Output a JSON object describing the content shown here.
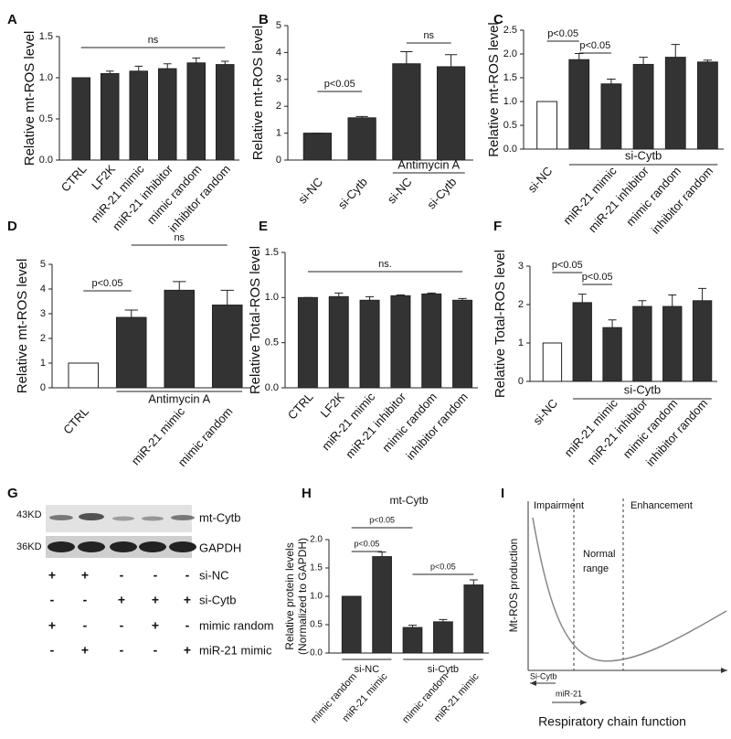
{
  "chart_data": [
    {
      "type": "bar",
      "panel": "A",
      "ylabel": "Relative mt-ROS level",
      "categories": [
        "CTRL",
        "LF2K",
        "miR-21 mimic",
        "miR-21 inhibitor",
        "mimic random",
        "inhibitor random"
      ],
      "values": [
        1.0,
        1.05,
        1.08,
        1.11,
        1.18,
        1.16
      ],
      "errors": [
        0.0,
        0.03,
        0.06,
        0.06,
        0.06,
        0.04
      ],
      "colors": [
        "#333333",
        "#333333",
        "#333333",
        "#333333",
        "#333333",
        "#333333"
      ],
      "ylim": [
        0,
        1.5
      ],
      "yticks": [
        {
          "value": 0,
          "label": "0.0"
        },
        0.5,
        {
          "value": 1,
          "label": "1.0"
        },
        1.5
      ],
      "annotations": [
        "ns"
      ],
      "groups": []
    },
    {
      "type": "bar",
      "panel": "B",
      "ylabel": "Relative mt-ROS level",
      "categories": [
        "si-NC",
        "si-Cytb",
        "si-NC",
        "si-Cytb"
      ],
      "values": [
        1.0,
        1.57,
        3.58,
        3.47
      ],
      "errors": [
        0.0,
        0.05,
        0.45,
        0.45
      ],
      "colors": [
        "#333333",
        "#333333",
        "#333333",
        "#333333"
      ],
      "ylim": [
        0,
        5
      ],
      "yticks": [
        0,
        1,
        2,
        3,
        4,
        5
      ],
      "annotations": [
        "p<0.05",
        "ns"
      ],
      "groups": [
        "Antimycin A"
      ]
    },
    {
      "type": "bar",
      "panel": "C",
      "ylabel": "Relative mt-ROS level",
      "categories": [
        "si-NC",
        null,
        "miR-21 mimic",
        "miR-21 inhibitor",
        "mimic random",
        "inhibitor random"
      ],
      "values": [
        1.0,
        1.88,
        1.37,
        1.78,
        1.93,
        1.83
      ],
      "errors": [
        0.0,
        0.13,
        0.1,
        0.15,
        0.27,
        0.04
      ],
      "colors": [
        "#ffffff",
        "#333333",
        "#333333",
        "#333333",
        "#333333",
        "#333333"
      ],
      "ylim": [
        0,
        2.5
      ],
      "yticks": [
        {
          "value": 0,
          "label": "0.0"
        },
        0.5,
        {
          "value": 1,
          "label": "1.0"
        },
        1.5,
        {
          "value": 2,
          "label": "2.0"
        },
        2.5
      ],
      "annotations": [
        "p<0.05",
        "p<0.05"
      ],
      "groups": [
        "si-Cytb"
      ]
    },
    {
      "type": "bar",
      "panel": "D",
      "ylabel": "Relative mt-ROS level",
      "categories": [
        "CTRL",
        null,
        "miR-21 mimic",
        "mimic random"
      ],
      "values": [
        1.0,
        2.85,
        3.95,
        3.35
      ],
      "errors": [
        0.0,
        0.3,
        0.35,
        0.6
      ],
      "colors": [
        "#ffffff",
        "#333333",
        "#333333",
        "#333333"
      ],
      "ylim": [
        0,
        5
      ],
      "yticks": [
        0,
        1,
        2,
        3,
        4,
        5
      ],
      "annotations": [
        "p<0.05",
        "ns"
      ],
      "groups": [
        "Antimycin A"
      ]
    },
    {
      "type": "bar",
      "panel": "E",
      "ylabel": "Relative Total-ROS level",
      "categories": [
        "CTRL",
        "LF2K",
        "miR-21 mimic",
        "miR-21 inhibitor",
        "mimic random",
        "inhibitor random"
      ],
      "values": [
        1.0,
        1.01,
        0.97,
        1.02,
        1.04,
        0.97
      ],
      "errors": [
        0.0,
        0.04,
        0.04,
        0.01,
        0.01,
        0.02
      ],
      "colors": [
        "#333333",
        "#333333",
        "#333333",
        "#333333",
        "#333333",
        "#333333"
      ],
      "ylim": [
        0,
        1.5
      ],
      "yticks": [
        {
          "value": 0,
          "label": "0.0"
        },
        0.5,
        {
          "value": 1,
          "label": "1.0"
        },
        1.5
      ],
      "annotations": [
        "ns."
      ],
      "groups": []
    },
    {
      "type": "bar",
      "panel": "F",
      "ylabel": "Relative Total-ROS level",
      "categories": [
        "si-NC",
        null,
        "miR-21 mimic",
        "miR-21 inhibitor",
        "mimic random",
        "inhibitor random"
      ],
      "values": [
        1.0,
        2.05,
        1.4,
        1.95,
        1.95,
        2.1
      ],
      "errors": [
        0.0,
        0.22,
        0.2,
        0.15,
        0.3,
        0.32
      ],
      "colors": [
        "#ffffff",
        "#333333",
        "#333333",
        "#333333",
        "#333333",
        "#333333"
      ],
      "ylim": [
        0,
        3
      ],
      "yticks": [
        0,
        1,
        2,
        3
      ],
      "annotations": [
        "p<0.05",
        "p<0.05"
      ],
      "groups": [
        "si-Cytb"
      ]
    },
    {
      "type": "bar",
      "panel": "H",
      "title": "mt-Cytb",
      "ylabel": [
        "Relative protein levels",
        "(Normalized to GAPDH)"
      ],
      "categories": [
        "mimic random",
        "miR-21 mimic",
        null,
        "mimic random",
        "miR-21 mimic"
      ],
      "values": [
        1.0,
        1.7,
        0.45,
        0.55,
        1.2
      ],
      "errors": [
        0.0,
        0.08,
        0.04,
        0.04,
        0.09
      ],
      "colors": [
        "#333333",
        "#333333",
        "#333333",
        "#333333",
        "#333333"
      ],
      "ylim": [
        0,
        2
      ],
      "yticks": [
        {
          "value": 0,
          "label": "0.0"
        },
        0.5,
        {
          "value": 1,
          "label": "1.0"
        },
        1.5,
        {
          "value": 2,
          "label": "2.0"
        }
      ],
      "annotations": [
        "p<0.05",
        "p<0.05",
        "p<0.05"
      ],
      "groups": [
        "si-NC",
        "si-Cytb"
      ]
    }
  ],
  "blot": {
    "panel": "G",
    "markers": [
      "43KD",
      "36KD"
    ],
    "proteins": [
      "mt-Cytb",
      "GAPDH"
    ],
    "rows": [
      {
        "label": "si-NC",
        "signs": [
          "+",
          "+",
          "-",
          "-",
          "-"
        ]
      },
      {
        "label": "si-Cytb",
        "signs": [
          "-",
          "-",
          "+",
          "+",
          "+"
        ]
      },
      {
        "label": "mimic random",
        "signs": [
          "+",
          "-",
          "-",
          "+",
          "-"
        ]
      },
      {
        "label": "miR-21 mimic",
        "signs": [
          "-",
          "+",
          "-",
          "-",
          "+"
        ]
      }
    ]
  },
  "diagram": {
    "panel": "I",
    "regions": [
      "Impairment",
      "Enhancement"
    ],
    "normal": [
      "Normal",
      "range"
    ],
    "ylabel": "Mt-ROS production",
    "arrows": [
      "Si-Cytb",
      "miR-21"
    ],
    "xlabel": "Respiratory chain function"
  }
}
